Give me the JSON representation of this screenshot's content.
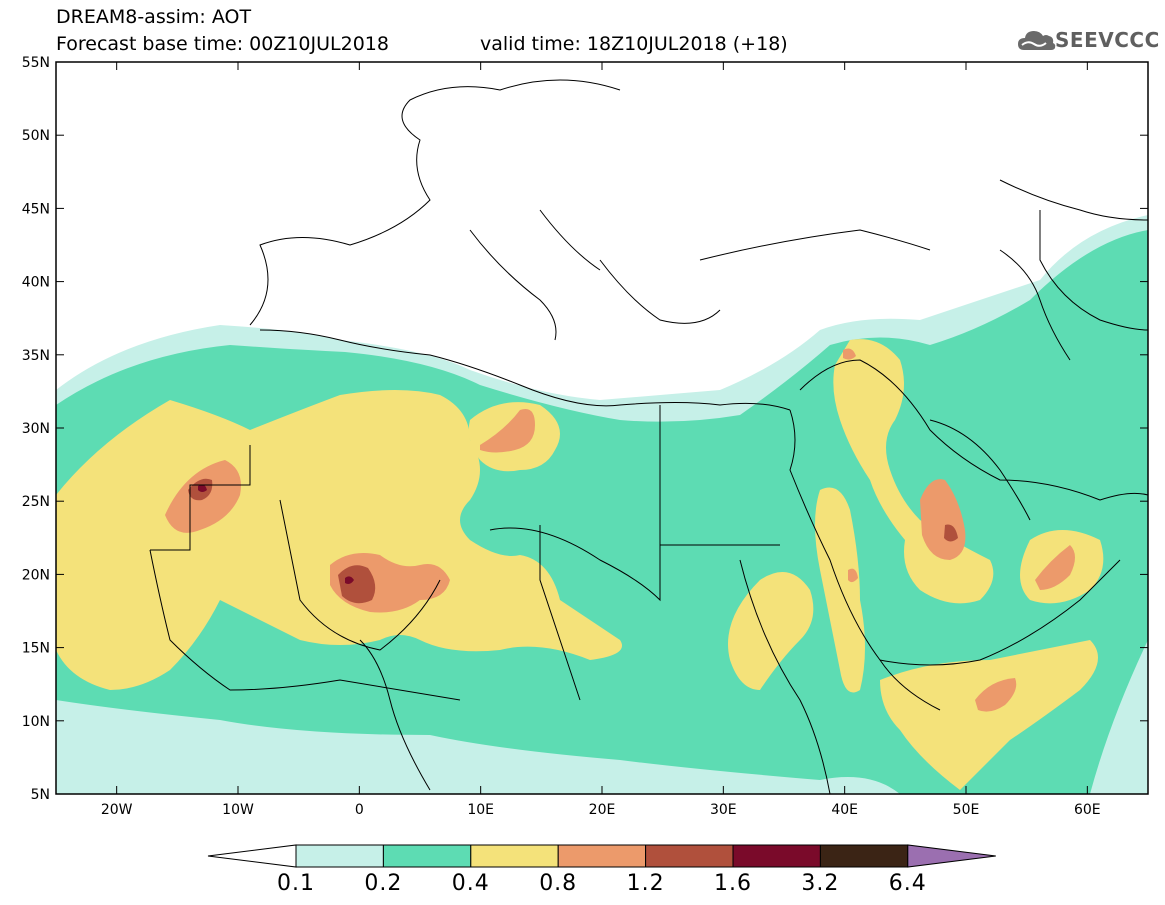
{
  "title": {
    "line1": "DREAM8-assim: AOT",
    "base_time": "Forecast base time: 00Z10JUL2018",
    "valid_time": "valid time: 18Z10JUL2018 (+18)"
  },
  "logo": {
    "text": "SEEVCCC",
    "icon": "cloud-icon"
  },
  "map": {
    "lat_labels": [
      "55N",
      "50N",
      "45N",
      "40N",
      "35N",
      "30N",
      "25N",
      "20N",
      "15N",
      "10N",
      "5N"
    ],
    "lon_labels": [
      "20W",
      "10W",
      "0",
      "10E",
      "20E",
      "30E",
      "40E",
      "50E",
      "60E"
    ],
    "lon_range": [
      -25,
      65
    ],
    "lat_range": [
      5,
      55
    ]
  },
  "legend": {
    "colors": [
      "#c6f0e8",
      "#5ddcb3",
      "#f4e27a",
      "#ec9a6b",
      "#b0503c",
      "#7a0a2a",
      "#3b2415",
      "#9b6fb0"
    ],
    "min_color": "#ffffff",
    "labels": [
      "0.1",
      "0.2",
      "0.4",
      "0.8",
      "1.2",
      "1.6",
      "3.2",
      "6.4"
    ]
  }
}
